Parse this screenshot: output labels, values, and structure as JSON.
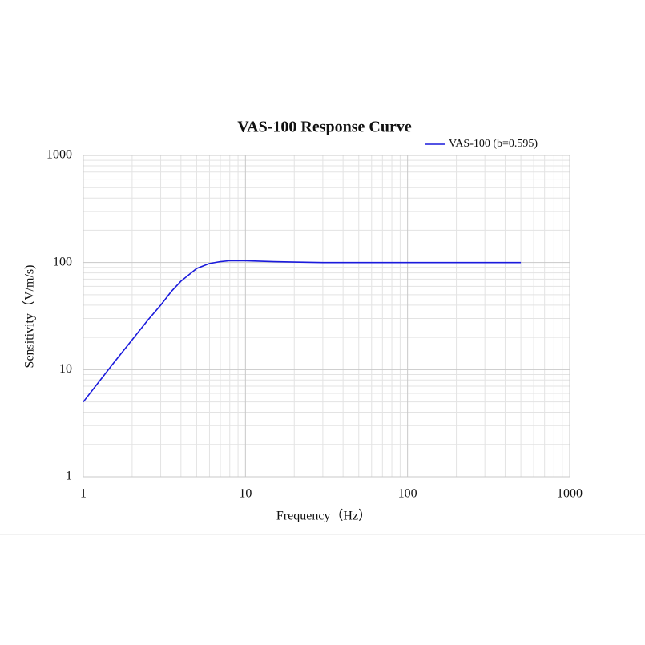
{
  "chart_data": {
    "type": "line",
    "title": "VAS-100 Response Curve",
    "x_label": "Frequency（Hz）",
    "y_label": "Sensitivity（V/m/s)",
    "x": [
      1,
      1.5,
      2,
      2.5,
      3,
      3.5,
      4,
      5,
      6,
      7,
      8,
      10,
      15,
      20,
      30,
      50,
      100,
      200,
      500
    ],
    "series": [
      {
        "name": "VAS-100 (b=0.595)",
        "color": "#1a1adc",
        "values": [
          5,
          11,
          19,
          29,
          40,
          54,
          67,
          88,
          98,
          102,
          104,
          104,
          102,
          101,
          100,
          100,
          100,
          100,
          100
        ]
      }
    ],
    "xlim": [
      1,
      1000
    ],
    "ylim": [
      1,
      1000
    ],
    "xticks": [
      1,
      10,
      100,
      1000
    ],
    "yticks": [
      1,
      10,
      100,
      1000
    ],
    "xscale": "log",
    "yscale": "log",
    "grid": true,
    "legend": "upper right"
  }
}
